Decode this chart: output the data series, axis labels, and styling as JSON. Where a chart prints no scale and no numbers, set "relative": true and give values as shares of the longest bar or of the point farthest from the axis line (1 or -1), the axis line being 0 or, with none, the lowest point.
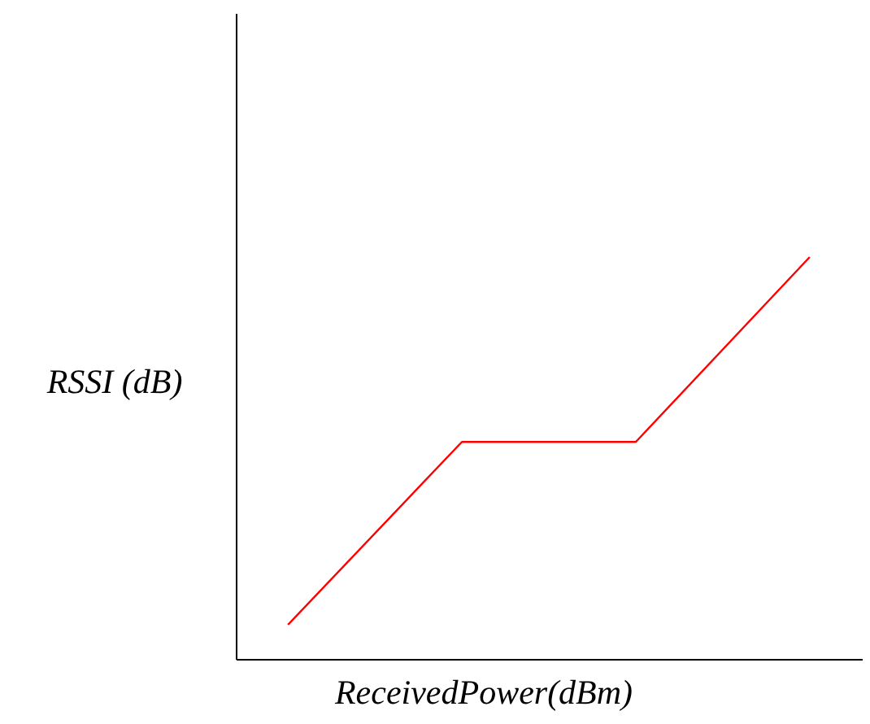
{
  "chart_data": {
    "type": "line",
    "relative": true,
    "xlabel": "ReceivedPower(dBm)",
    "ylabel": "RSSI (dB)",
    "categories": [
      null,
      null,
      null,
      null
    ],
    "grid": false,
    "marker": "none",
    "series": [
      {
        "color": "#ff0000",
        "values": [
          0.085,
          0.54,
          0.54,
          1
        ]
      }
    ]
  }
}
